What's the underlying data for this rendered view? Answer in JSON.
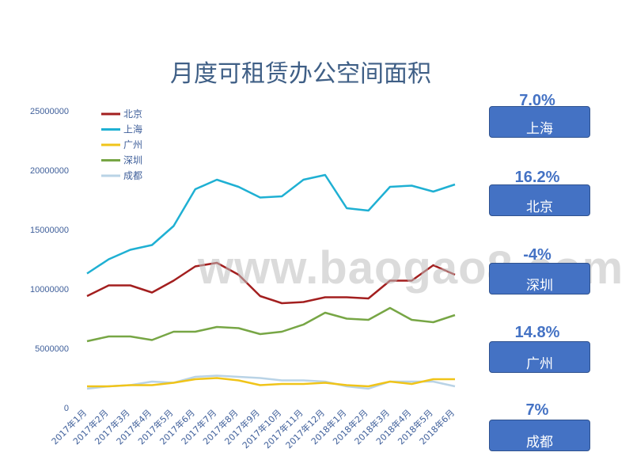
{
  "title": "月度可租赁办公空间面积",
  "watermark": "www.baogao8.com",
  "colors": {
    "beijing": "#a31f1f",
    "shanghai": "#1fb0d3",
    "guangzhou": "#f0c419",
    "shenzhen": "#77a645",
    "chengdu": "#b9d3e6",
    "badge": "#4472c4",
    "axis_text": "#3f5f9a"
  },
  "summary": [
    {
      "pct": "7.0%",
      "city": "上海"
    },
    {
      "pct": "16.2%",
      "city": "北京"
    },
    {
      "pct": "-4%",
      "city": "深圳"
    },
    {
      "pct": "14.8%",
      "city": "广州"
    },
    {
      "pct": "7%",
      "city": "成都"
    }
  ],
  "chart_data": {
    "type": "line",
    "title": "月度可租赁办公空间面积",
    "categories": [
      "2017年1月",
      "2017年2月",
      "2017年3月",
      "2017年4月",
      "2017年5月",
      "2017年6月",
      "2017年7月",
      "2017年8月",
      "2017年9月",
      "2017年10月",
      "2017年11月",
      "2017年12月",
      "2018年1月",
      "2018年2月",
      "2018年3月",
      "2018年4月",
      "2018年5月",
      "2018年6月"
    ],
    "y_ticks": [
      "0",
      "5000000",
      "10000000",
      "15000000",
      "20000000",
      "25000000"
    ],
    "ylim": [
      0,
      25000000
    ],
    "legend_position": "top-left",
    "grid": false,
    "series": [
      {
        "name": "北京",
        "color": "#a31f1f",
        "values": [
          9400000,
          10300000,
          10300000,
          9700000,
          10700000,
          11900000,
          12200000,
          11200000,
          9400000,
          8800000,
          8900000,
          9300000,
          9300000,
          9200000,
          10700000,
          10700000,
          12000000,
          11200000
        ]
      },
      {
        "name": "上海",
        "color": "#1fb0d3",
        "values": [
          11300000,
          12500000,
          13300000,
          13700000,
          15300000,
          18400000,
          19200000,
          18600000,
          17700000,
          17800000,
          19200000,
          19600000,
          16800000,
          16600000,
          18600000,
          18700000,
          18200000,
          18800000
        ]
      },
      {
        "name": "广州",
        "color": "#f0c419",
        "values": [
          1800000,
          1800000,
          1900000,
          1900000,
          2100000,
          2400000,
          2500000,
          2300000,
          1900000,
          2000000,
          2000000,
          2100000,
          1900000,
          1800000,
          2200000,
          2000000,
          2400000,
          2400000
        ]
      },
      {
        "name": "深圳",
        "color": "#77a645",
        "values": [
          5600000,
          6000000,
          6000000,
          5700000,
          6400000,
          6400000,
          6800000,
          6700000,
          6200000,
          6400000,
          7000000,
          8000000,
          7500000,
          7400000,
          8400000,
          7400000,
          7200000,
          7800000
        ]
      },
      {
        "name": "成都",
        "color": "#b9d3e6",
        "values": [
          1600000,
          1800000,
          1900000,
          2200000,
          2100000,
          2600000,
          2700000,
          2600000,
          2500000,
          2300000,
          2300000,
          2200000,
          1800000,
          1600000,
          2200000,
          2200000,
          2200000,
          1800000
        ]
      }
    ]
  }
}
